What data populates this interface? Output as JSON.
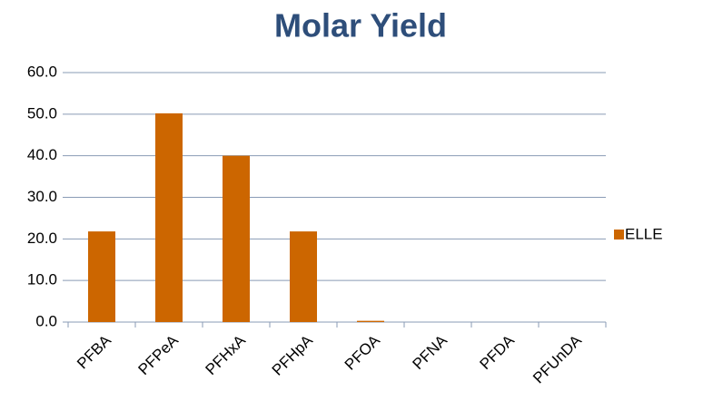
{
  "chart_data": {
    "type": "bar",
    "title": "Molar Yield",
    "categories": [
      "PFBA",
      "PFPeA",
      "PFHxA",
      "PFHpA",
      "PFOA",
      "PFNA",
      "PFDA",
      "PFUnDA"
    ],
    "series": [
      {
        "name": "ELLE",
        "color": "#cc6600",
        "values": [
          21.8,
          50.2,
          40.0,
          21.8,
          0.3,
          0,
          0,
          0
        ]
      }
    ],
    "ylim": [
      0,
      60
    ],
    "yticks": [
      {
        "value": 0,
        "label": "0.0"
      },
      {
        "value": 10,
        "label": "10.0"
      },
      {
        "value": 20,
        "label": "20.0"
      },
      {
        "value": 30,
        "label": "30.0"
      },
      {
        "value": 40,
        "label": "40.0"
      },
      {
        "value": 50,
        "label": "50.0"
      },
      {
        "value": 60,
        "label": "60.0"
      }
    ],
    "grid": true,
    "legend": "right"
  }
}
